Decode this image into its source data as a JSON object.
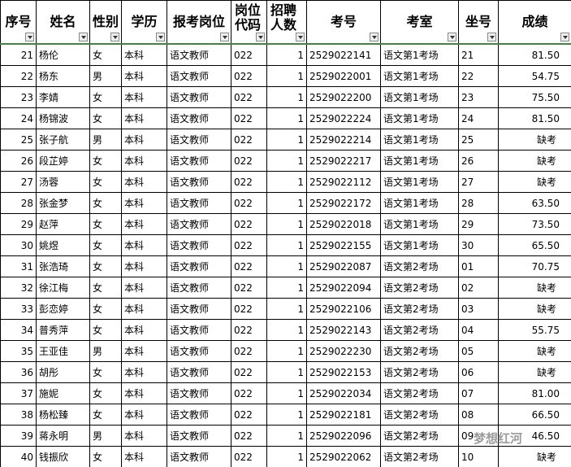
{
  "headers": [
    "序号",
    "姓名",
    "性别",
    "学历",
    "报考岗位",
    "岗位代码",
    "招聘人数",
    "考号",
    "考室",
    "坐号",
    "成绩"
  ],
  "rows": [
    [
      "21",
      "杨伦",
      "女",
      "本科",
      "语文教师",
      "022",
      "1",
      "2529022141",
      "语文第1考场",
      "21",
      "81.50"
    ],
    [
      "22",
      "杨东",
      "男",
      "本科",
      "语文教师",
      "022",
      "1",
      "2529022001",
      "语文第1考场",
      "22",
      "54.75"
    ],
    [
      "23",
      "李婧",
      "女",
      "本科",
      "语文教师",
      "022",
      "1",
      "2529022200",
      "语文第1考场",
      "23",
      "75.50"
    ],
    [
      "24",
      "杨锦波",
      "女",
      "本科",
      "语文教师",
      "022",
      "1",
      "2529022224",
      "语文第1考场",
      "24",
      "81.50"
    ],
    [
      "25",
      "张子航",
      "男",
      "本科",
      "语文教师",
      "022",
      "1",
      "2529022214",
      "语文第1考场",
      "25",
      "缺考"
    ],
    [
      "26",
      "段芷婷",
      "女",
      "本科",
      "语文教师",
      "022",
      "1",
      "2529022217",
      "语文第1考场",
      "26",
      "缺考"
    ],
    [
      "27",
      "汤蓉",
      "女",
      "本科",
      "语文教师",
      "022",
      "1",
      "2529022112",
      "语文第1考场",
      "27",
      "缺考"
    ],
    [
      "28",
      "张金梦",
      "女",
      "本科",
      "语文教师",
      "022",
      "1",
      "2529022172",
      "语文第1考场",
      "28",
      "63.50"
    ],
    [
      "29",
      "赵萍",
      "女",
      "本科",
      "语文教师",
      "022",
      "1",
      "2529022018",
      "语文第1考场",
      "29",
      "73.50"
    ],
    [
      "30",
      "姚煜",
      "女",
      "本科",
      "语文教师",
      "022",
      "1",
      "2529022155",
      "语文第1考场",
      "30",
      "65.50"
    ],
    [
      "31",
      "张浩琦",
      "女",
      "本科",
      "语文教师",
      "022",
      "1",
      "2529022087",
      "语文第2考场",
      "01",
      "70.75"
    ],
    [
      "32",
      "徐江梅",
      "女",
      "本科",
      "语文教师",
      "022",
      "1",
      "2529022094",
      "语文第2考场",
      "02",
      "缺考"
    ],
    [
      "33",
      "彭恋婷",
      "女",
      "本科",
      "语文教师",
      "022",
      "1",
      "2529022106",
      "语文第2考场",
      "03",
      "缺考"
    ],
    [
      "34",
      "普秀萍",
      "女",
      "本科",
      "语文教师",
      "022",
      "1",
      "2529022143",
      "语文第2考场",
      "04",
      "55.75"
    ],
    [
      "35",
      "王亚佳",
      "男",
      "本科",
      "语文教师",
      "022",
      "1",
      "2529022230",
      "语文第2考场",
      "05",
      "缺考"
    ],
    [
      "36",
      "胡彤",
      "女",
      "本科",
      "语文教师",
      "022",
      "1",
      "2529022153",
      "语文第2考场",
      "06",
      "缺考"
    ],
    [
      "37",
      "施妮",
      "女",
      "本科",
      "语文教师",
      "022",
      "1",
      "2529022034",
      "语文第2考场",
      "07",
      "81.00"
    ],
    [
      "38",
      "杨松臻",
      "女",
      "本科",
      "语文教师",
      "022",
      "1",
      "2529022181",
      "语文第2考场",
      "08",
      "66.50"
    ],
    [
      "39",
      "蒋永明",
      "男",
      "本科",
      "语文教师",
      "022",
      "1",
      "2529022096",
      "语文第2考场",
      "09",
      "46.50"
    ],
    [
      "40",
      "钱振欣",
      "女",
      "本科",
      "语文教师",
      "022",
      "1",
      "2529022062",
      "语文第2考场",
      "10",
      "缺考"
    ]
  ],
  "watermark": "梦想红河"
}
